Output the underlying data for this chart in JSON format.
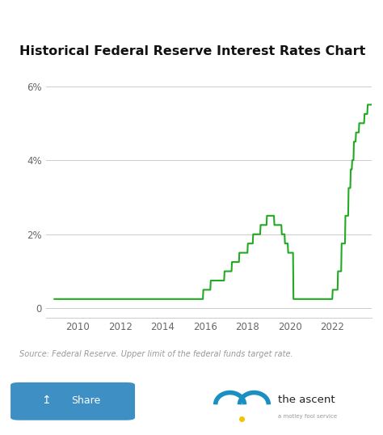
{
  "title": "Historical Federal Reserve Interest Rates Chart",
  "source_text": "Source: Federal Reserve. Upper limit of the federal funds target rate.",
  "line_color": "#22aa22",
  "background_color": "#ffffff",
  "grid_color": "#cccccc",
  "title_fontsize": 11.5,
  "ylim": [
    -0.25,
    6.8
  ],
  "yticks": [
    0,
    2,
    4,
    6
  ],
  "ytick_labels": [
    "0",
    "2%",
    "4%",
    "6%"
  ],
  "xlim": [
    2008.5,
    2023.85
  ],
  "xticks": [
    2010,
    2012,
    2014,
    2016,
    2018,
    2020,
    2022
  ],
  "data": [
    [
      2008.9,
      0.25
    ],
    [
      2015.9,
      0.25
    ],
    [
      2015.92,
      0.5
    ],
    [
      2016.25,
      0.5
    ],
    [
      2016.27,
      0.75
    ],
    [
      2016.9,
      0.75
    ],
    [
      2016.92,
      1.0
    ],
    [
      2017.25,
      1.0
    ],
    [
      2017.27,
      1.25
    ],
    [
      2017.6,
      1.25
    ],
    [
      2017.62,
      1.5
    ],
    [
      2018.0,
      1.5
    ],
    [
      2018.02,
      1.75
    ],
    [
      2018.25,
      1.75
    ],
    [
      2018.27,
      2.0
    ],
    [
      2018.6,
      2.0
    ],
    [
      2018.62,
      2.25
    ],
    [
      2018.9,
      2.25
    ],
    [
      2018.92,
      2.5
    ],
    [
      2019.25,
      2.5
    ],
    [
      2019.27,
      2.25
    ],
    [
      2019.6,
      2.25
    ],
    [
      2019.62,
      2.0
    ],
    [
      2019.75,
      2.0
    ],
    [
      2019.77,
      1.75
    ],
    [
      2019.9,
      1.75
    ],
    [
      2019.92,
      1.5
    ],
    [
      2020.15,
      1.5
    ],
    [
      2020.17,
      0.25
    ],
    [
      2022.0,
      0.25
    ],
    [
      2022.02,
      0.5
    ],
    [
      2022.25,
      0.5
    ],
    [
      2022.27,
      1.0
    ],
    [
      2022.42,
      1.0
    ],
    [
      2022.44,
      1.75
    ],
    [
      2022.6,
      1.75
    ],
    [
      2022.62,
      2.5
    ],
    [
      2022.75,
      2.5
    ],
    [
      2022.77,
      3.25
    ],
    [
      2022.85,
      3.25
    ],
    [
      2022.87,
      3.75
    ],
    [
      2022.92,
      3.75
    ],
    [
      2022.94,
      4.0
    ],
    [
      2023.0,
      4.0
    ],
    [
      2023.02,
      4.5
    ],
    [
      2023.1,
      4.5
    ],
    [
      2023.12,
      4.75
    ],
    [
      2023.25,
      4.75
    ],
    [
      2023.27,
      5.0
    ],
    [
      2023.5,
      5.0
    ],
    [
      2023.52,
      5.25
    ],
    [
      2023.65,
      5.25
    ],
    [
      2023.67,
      5.5
    ],
    [
      2023.85,
      5.5
    ]
  ]
}
